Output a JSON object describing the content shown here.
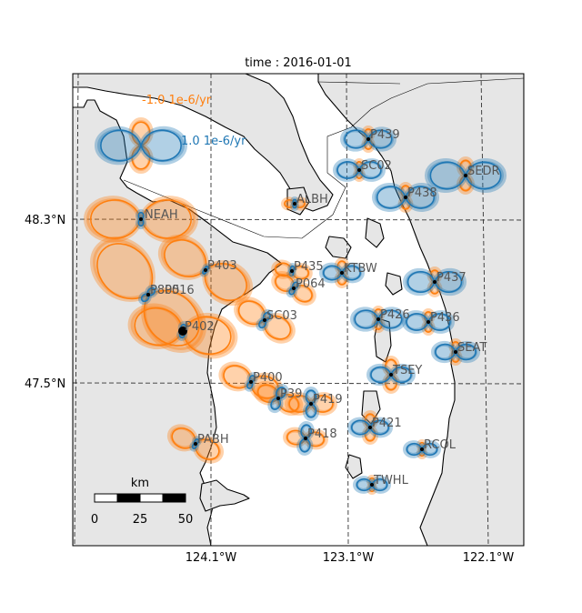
{
  "title": "time : 2016-01-01",
  "legend": {
    "negative_label": "-1.0 1e-6/yr",
    "positive_label": "1.0 1e-6/yr"
  },
  "colors": {
    "negative": "#ff7f0e",
    "positive": "#1f77b4",
    "land": "#e6e6e6"
  },
  "axes": {
    "x_ticks": [
      "124.1°W",
      "123.1°W",
      "122.1°W"
    ],
    "y_ticks": [
      "48.3°N",
      "47.5°N"
    ]
  },
  "scalebar": {
    "unit": "km",
    "labels": [
      "0",
      "25",
      "50"
    ]
  },
  "stations": [
    {
      "name": "NEAH",
      "glyph": "neah"
    },
    {
      "name": "P403",
      "glyph": "p403"
    },
    {
      "name": "P805",
      "glyph": "p805"
    },
    {
      "name": "P016",
      "glyph": "p805"
    },
    {
      "name": "P402",
      "glyph": "p402"
    },
    {
      "name": "P400",
      "glyph": "p400"
    },
    {
      "name": "PABH",
      "glyph": "pabh"
    },
    {
      "name": "SC03",
      "glyph": "sc03"
    },
    {
      "name": "P435",
      "glyph": "p435"
    },
    {
      "name": "P064",
      "glyph": "p064"
    },
    {
      "name": "P39",
      "glyph": "p39"
    },
    {
      "name": "P419",
      "glyph": "p419"
    },
    {
      "name": "P418",
      "glyph": "p418"
    },
    {
      "name": "ALBH",
      "glyph": "albh"
    },
    {
      "name": "P439",
      "glyph": "p439"
    },
    {
      "name": "SC02",
      "glyph": "sc02"
    },
    {
      "name": "P438",
      "glyph": "p438"
    },
    {
      "name": "SEDR",
      "glyph": "sedr"
    },
    {
      "name": "P437",
      "glyph": "p437"
    },
    {
      "name": "KTBW",
      "glyph": "ktbw"
    },
    {
      "name": "P436",
      "glyph": "p436"
    },
    {
      "name": "P426",
      "glyph": "p426"
    },
    {
      "name": "SEAT",
      "glyph": "seat"
    },
    {
      "name": "TSEY",
      "glyph": "tsey"
    },
    {
      "name": "P421",
      "glyph": "p421"
    },
    {
      "name": "RCOL",
      "glyph": "rcol"
    },
    {
      "name": "TWHL",
      "glyph": "twhl"
    }
  ]
}
